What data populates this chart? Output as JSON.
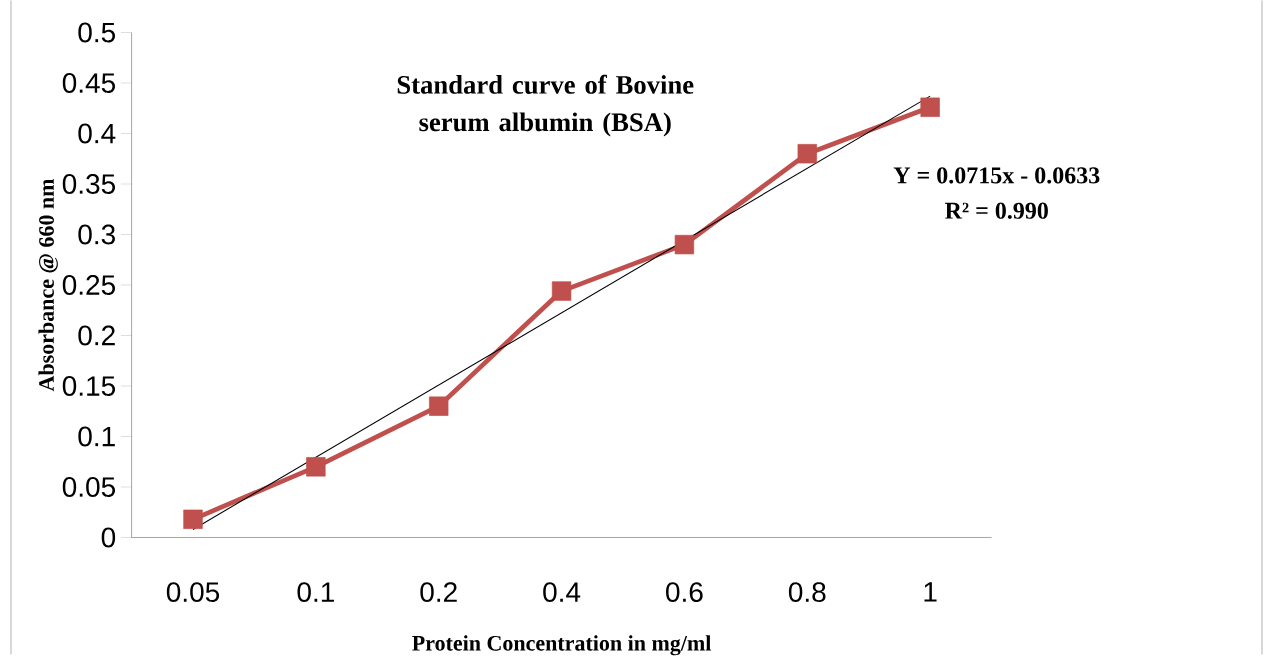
{
  "chart_data": {
    "type": "line",
    "title": "Standard curve of Bovine serum albumin (BSA)",
    "xlabel": "Protein Concentration in mg/ml",
    "ylabel": "Absorbance @ 660 nm",
    "categories": [
      "0.05",
      "0.1",
      "0.2",
      "0.4",
      "0.6",
      "0.8",
      "1"
    ],
    "series": [
      {
        "color": "#c0504d",
        "values": [
          0.018,
          0.07,
          0.13,
          0.244,
          0.29,
          0.38,
          0.426
        ]
      },
      {
        "type": "line",
        "color": "#000000",
        "marker": "none",
        "x": [
          "0.05",
          "1"
        ],
        "values": [
          0.008,
          0.437
        ]
      }
    ],
    "annotations": [
      "Y = 0.0715x - 0.0633",
      "R² = 0.990"
    ],
    "ylim": [
      0,
      0.5
    ],
    "yticks": [
      0,
      0.05,
      0.1,
      0.15,
      0.2,
      0.25,
      0.3,
      0.35,
      0.4,
      0.45,
      0.5
    ],
    "grid": false,
    "marker": "square",
    "line_style": "solid"
  }
}
